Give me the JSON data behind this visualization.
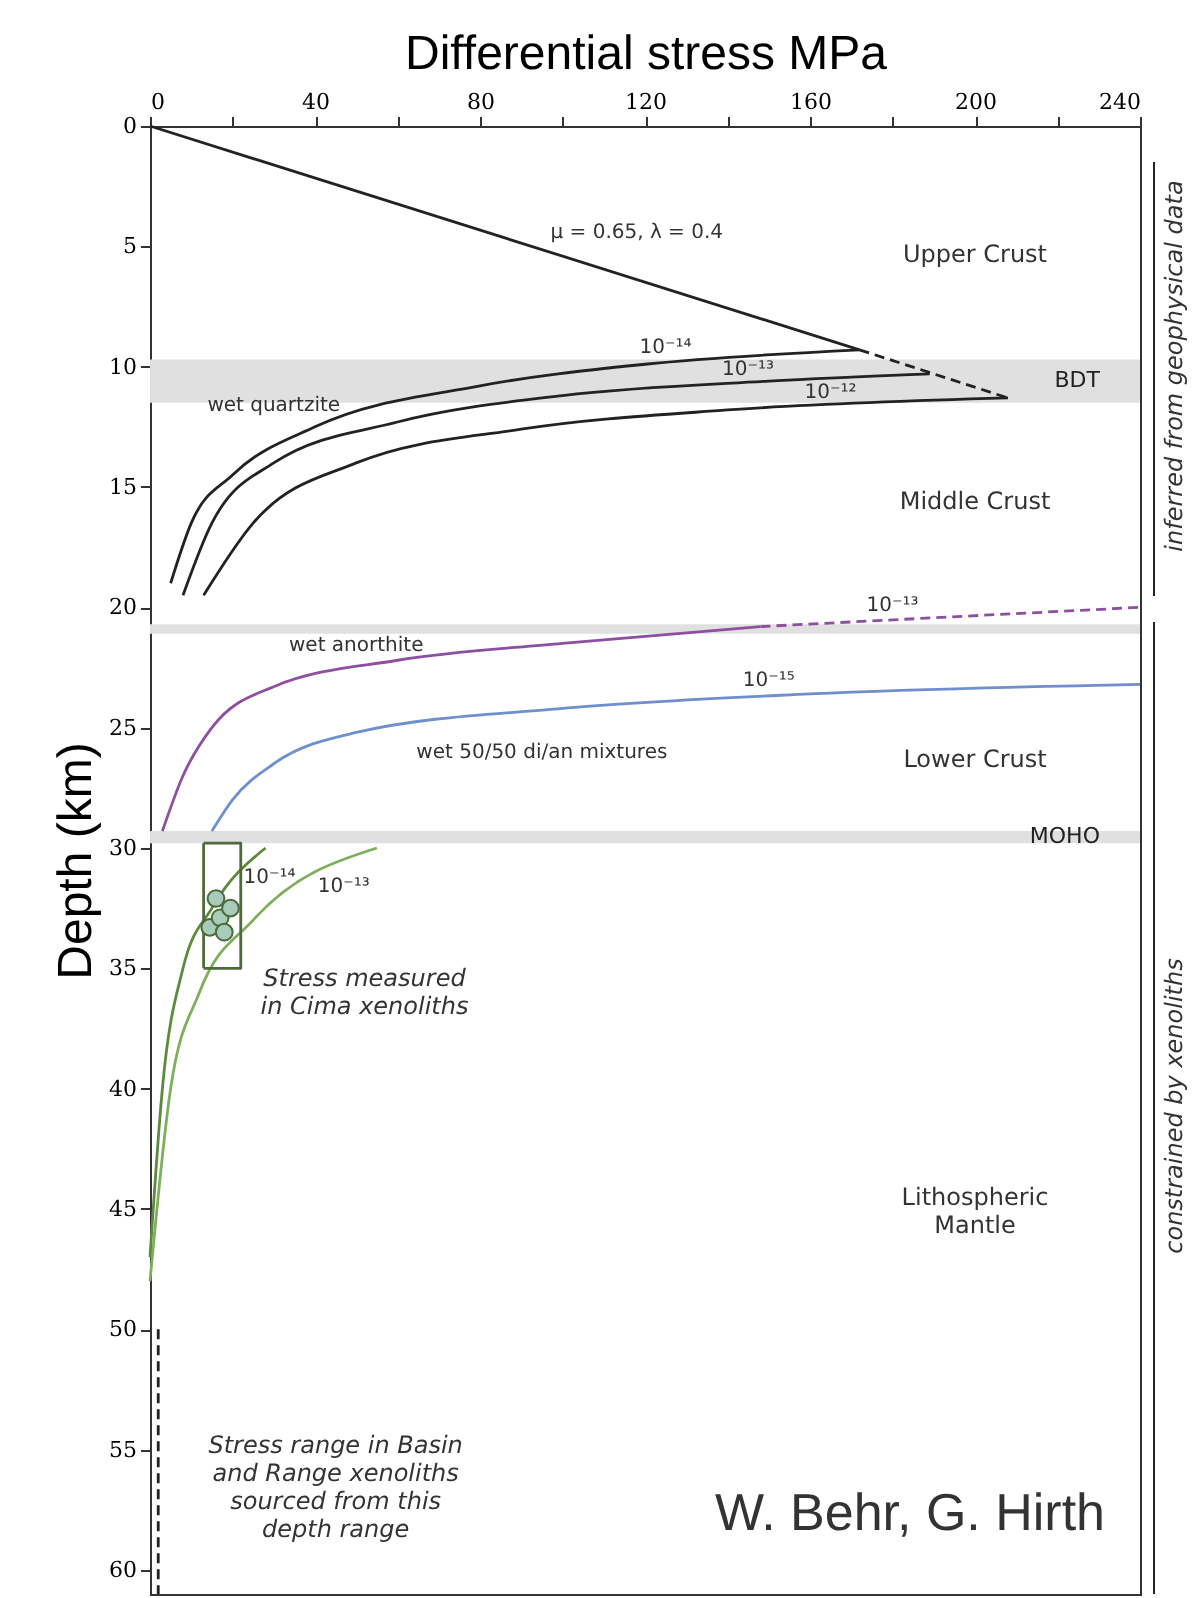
{
  "chart_data": {
    "type": "line",
    "xlabel": "Differential stress MPa",
    "ylabel": "Depth   (km)",
    "xlim": [
      0,
      240
    ],
    "ylim": [
      61,
      0
    ],
    "xticks": [
      0,
      {
        "value": 20,
        "label": null
      },
      40,
      {
        "value": 60,
        "label": null
      },
      80,
      {
        "value": 100,
        "label": null
      },
      120,
      {
        "value": 140,
        "label": null
      },
      160,
      {
        "value": 180,
        "label": null
      },
      200,
      {
        "value": 220,
        "label": null
      },
      240
    ],
    "yticks": [
      0,
      5,
      10,
      15,
      20,
      25,
      30,
      35,
      40,
      45,
      50,
      55,
      60
    ],
    "grid": false,
    "series": [
      {
        "color": "#222222",
        "x": [
          0,
          172
        ],
        "values": [
          0,
          9.3
        ]
      },
      {
        "color": "#222222",
        "line_style": "dashed",
        "x": [
          172,
          208
        ],
        "values": [
          9.3,
          11.3
        ]
      },
      {
        "color": "#222222",
        "x": [
          5,
          10,
          20,
          40,
          80,
          120,
          172
        ],
        "values": [
          19,
          16.5,
          14.5,
          12.5,
          10.8,
          9.9,
          9.3
        ]
      },
      {
        "color": "#222222",
        "x": [
          8,
          15,
          30,
          60,
          100,
          150,
          189
        ],
        "values": [
          19.5,
          16.5,
          14,
          12.3,
          11.2,
          10.6,
          10.3
        ]
      },
      {
        "color": "#222222",
        "x": [
          13,
          25,
          50,
          90,
          140,
          208
        ],
        "values": [
          19.5,
          16.5,
          14,
          12.6,
          11.8,
          11.3
        ]
      },
      {
        "color": "#8e4fa0",
        "x": [
          3,
          8,
          15,
          30,
          60,
          100,
          148
        ],
        "values": [
          29.3,
          27,
          25,
          23.3,
          22.2,
          21.5,
          20.8
        ]
      },
      {
        "color": "#8e4fa0",
        "line_style": "dashed",
        "x": [
          148,
          240
        ],
        "values": [
          20.8,
          20
        ]
      },
      {
        "color": "#6f8fcf",
        "x": [
          15,
          20,
          30,
          50,
          100,
          160,
          240
        ],
        "values": [
          29.3,
          28,
          26.5,
          25.2,
          24.2,
          23.6,
          23.2
        ]
      },
      {
        "color": "#5e8a3e",
        "x": [
          0,
          3,
          8,
          15,
          28
        ],
        "values": [
          47,
          40,
          35,
          32.5,
          30
        ]
      },
      {
        "color": "#7fae5c",
        "x": [
          0,
          5,
          12,
          25,
          55
        ],
        "values": [
          48,
          40,
          36,
          33,
          30
        ]
      },
      {
        "color": "#4d6b3a",
        "x": [
          13,
          22,
          22,
          13
        ],
        "values": [
          29.8,
          29.8,
          35,
          35
        ]
      },
      {
        "color": "#4d6b3a",
        "x": [
          13,
          13
        ],
        "values": [
          35,
          29.8
        ]
      },
      {
        "type": "scatter",
        "color": "#4d6b3a",
        "marker": "circle",
        "x": [
          14.5,
          17,
          19.5,
          16,
          18
        ],
        "values": [
          33.3,
          32.9,
          32.5,
          32.1,
          33.5
        ]
      },
      {
        "color": "#222222",
        "line_style": "dashed",
        "x": [
          2,
          2
        ],
        "values": [
          50,
          61
        ]
      }
    ],
    "bands": [
      {
        "axis": "y",
        "from": 9.7,
        "to": 11.5,
        "label": "BDT",
        "color": "#e0e0e0"
      },
      {
        "axis": "y",
        "from": 20.7,
        "to": 21.1,
        "color": "#e0e0e0"
      },
      {
        "axis": "y",
        "from": 29.3,
        "to": 29.8,
        "label": "MOHO",
        "color": "#e0e0e0"
      }
    ],
    "annotations": [
      "μ = 0.65, λ = 0.4",
      "10⁻¹⁴",
      "10⁻¹³",
      "10⁻¹²",
      "wet quartzite",
      "10⁻¹³",
      "wet anorthite",
      "10⁻¹⁵",
      "wet 50/50 di/an mixtures",
      "10⁻¹⁴",
      "10⁻¹³",
      "Upper Crust",
      "Middle Crust",
      "Lower Crust",
      "Lithospheric\nMantle",
      "Stress measured\nin Cima xenoliths",
      "Stress range in Basin\nand Range xenoliths\nsourced from this\ndepth range",
      "W. Behr, G. Hirth",
      "inferred from geophysical data",
      "constrained by xenoliths"
    ]
  }
}
